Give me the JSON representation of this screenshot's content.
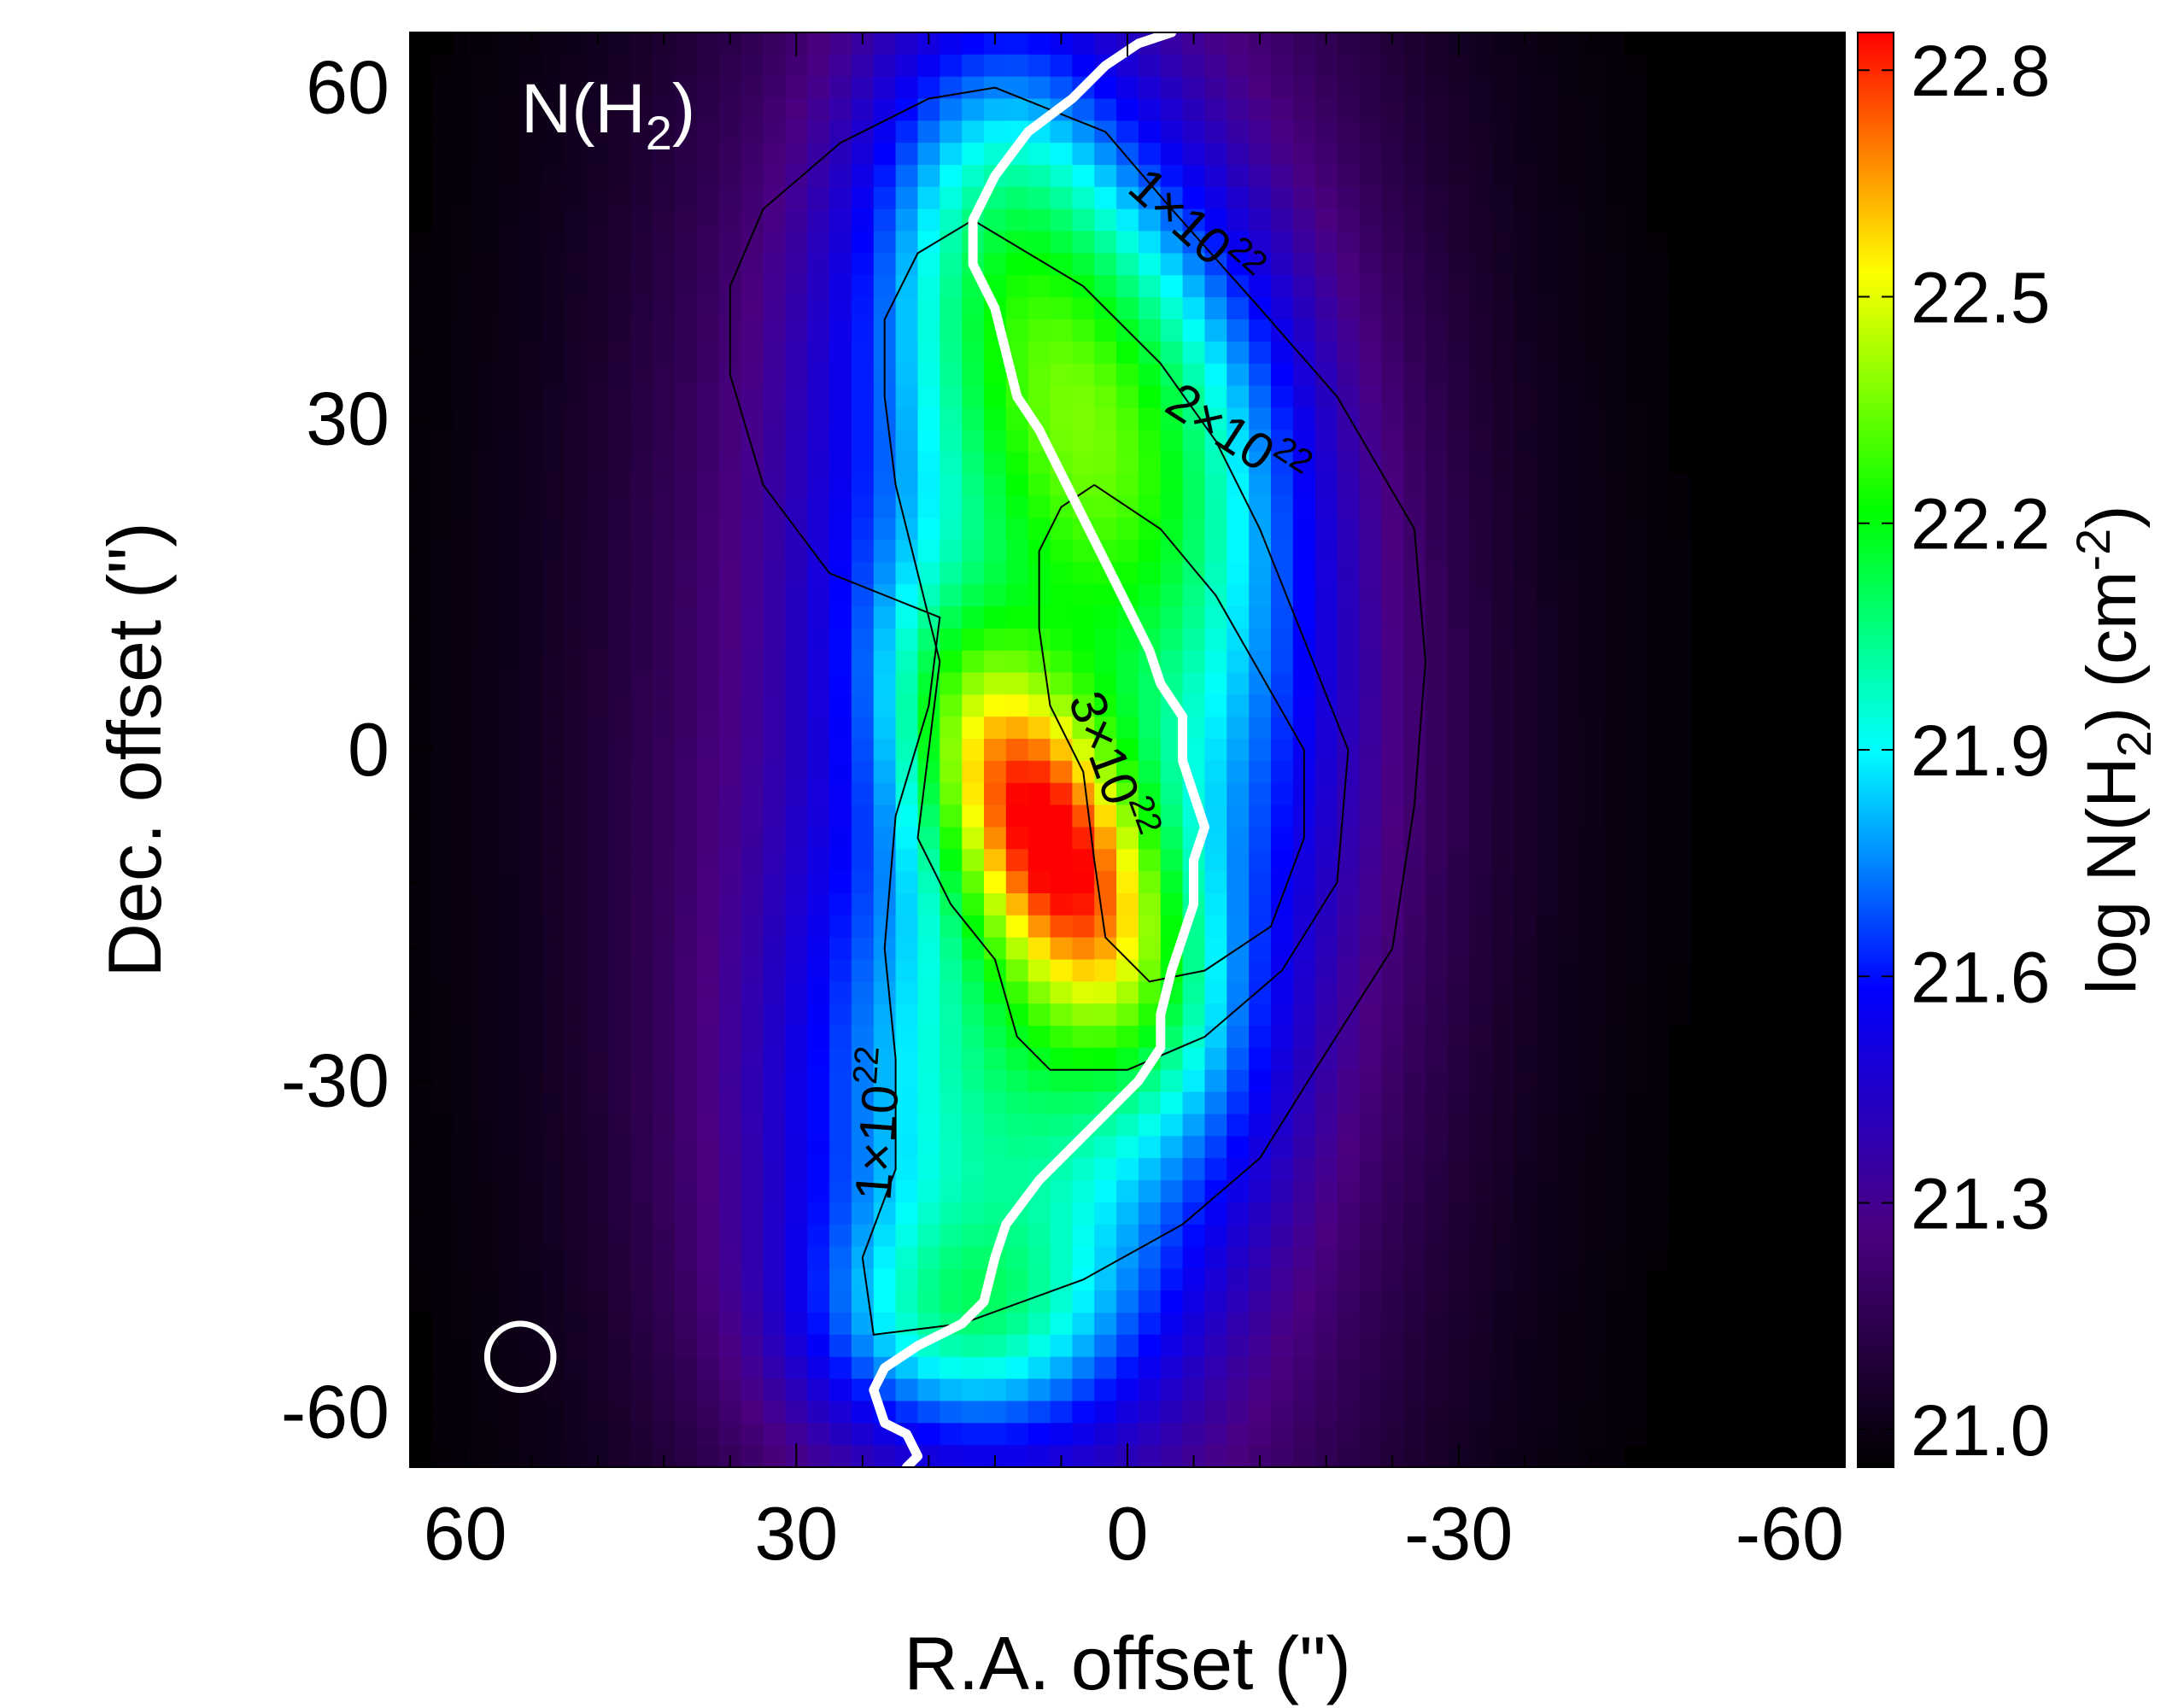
{
  "chart_data": {
    "type": "heatmap",
    "title": "",
    "panel_label": {
      "main": "N(H",
      "sub": "2",
      "close": ")"
    },
    "xlabel": "R.A. offset (\")",
    "ylabel": "Dec. offset (\")",
    "xlim": [
      65,
      -65
    ],
    "ylim": [
      -65,
      65
    ],
    "x_ticks": [
      60,
      30,
      0,
      -30,
      -60
    ],
    "x_tick_labels": [
      "60",
      "30",
      "0",
      "-30",
      "-60"
    ],
    "y_ticks": [
      60,
      30,
      0,
      -30,
      -60
    ],
    "y_tick_labels": [
      "60",
      "30",
      "0",
      "-30",
      "-60"
    ],
    "x_minor_step": 6,
    "y_minor_step": 6,
    "grid": false,
    "colorbar": {
      "label": {
        "main": "log N(H",
        "sub": "2",
        "close": ") (cm",
        "sup": "-2",
        "end": ")"
      },
      "range": [
        20.95,
        22.85
      ],
      "ticks": [
        21.0,
        21.3,
        21.6,
        21.9,
        22.2,
        22.5,
        22.8
      ],
      "tick_labels": [
        "21.0",
        "21.3",
        "21.6",
        "21.9",
        "22.2",
        "22.5",
        "22.8"
      ],
      "colormap": [
        "#000000",
        "#4b0082",
        "#0000ff",
        "#00ffff",
        "#00ff00",
        "#ffff00",
        "#ff0000"
      ]
    },
    "contour_labels": [
      {
        "mantissa": "1×10",
        "exponent": "22",
        "x": -5,
        "y": 46,
        "rotate": 42
      },
      {
        "mantissa": "2×10",
        "exponent": "22",
        "x": -9,
        "y": 27,
        "rotate": 33
      },
      {
        "mantissa": "3×10",
        "exponent": "22",
        "x": 3,
        "y": -2,
        "rotate": 70
      },
      {
        "mantissa": "1×10",
        "exponent": "22",
        "x": 21,
        "y": -34,
        "rotate": -86
      }
    ],
    "contours": [
      {
        "level": "1×10^22",
        "points": [
          [
            12,
            60
          ],
          [
            2,
            56
          ],
          [
            -4,
            49
          ],
          [
            -12,
            40
          ],
          [
            -19,
            32
          ],
          [
            -26,
            20
          ],
          [
            -27,
            8
          ],
          [
            -26,
            -5
          ],
          [
            -24,
            -18
          ],
          [
            -17,
            -29
          ],
          [
            -12,
            -37
          ],
          [
            -5,
            -43
          ],
          [
            4,
            -48
          ],
          [
            15,
            -52
          ],
          [
            23,
            -53
          ],
          [
            24,
            -46
          ],
          [
            21,
            -38
          ],
          [
            21,
            -28
          ],
          [
            22,
            -18
          ],
          [
            21,
            -6
          ],
          [
            18,
            4
          ],
          [
            17,
            12
          ],
          [
            27,
            16
          ],
          [
            33,
            24
          ],
          [
            36,
            34
          ],
          [
            36,
            42
          ],
          [
            33,
            49
          ],
          [
            26,
            55
          ],
          [
            18,
            59
          ],
          [
            12,
            60
          ]
        ]
      },
      {
        "level": "2×10^22",
        "points": [
          [
            14,
            48
          ],
          [
            4,
            42
          ],
          [
            -3,
            35
          ],
          [
            -8,
            28
          ],
          [
            -12,
            20
          ],
          [
            -16,
            10
          ],
          [
            -20,
            0
          ],
          [
            -19,
            -12
          ],
          [
            -14,
            -20
          ],
          [
            -7,
            -26
          ],
          [
            0,
            -29
          ],
          [
            7,
            -29
          ],
          [
            10,
            -26
          ],
          [
            12,
            -19
          ],
          [
            16,
            -14
          ],
          [
            19,
            -8
          ],
          [
            18,
            0
          ],
          [
            17,
            8
          ],
          [
            19,
            16
          ],
          [
            21,
            24
          ],
          [
            22,
            32
          ],
          [
            22,
            39
          ],
          [
            19,
            45
          ],
          [
            14,
            48
          ]
        ]
      },
      {
        "level": "3×10^22",
        "points": [
          [
            3,
            24
          ],
          [
            -3,
            20
          ],
          [
            -8,
            14
          ],
          [
            -12,
            7
          ],
          [
            -16,
            0
          ],
          [
            -16,
            -8
          ],
          [
            -13,
            -16
          ],
          [
            -7,
            -20
          ],
          [
            -2,
            -21
          ],
          [
            2,
            -17
          ],
          [
            3,
            -10
          ],
          [
            4,
            -2
          ],
          [
            7,
            4
          ],
          [
            8,
            11
          ],
          [
            8,
            18
          ],
          [
            6,
            22
          ],
          [
            3,
            24
          ]
        ]
      }
    ],
    "ridge": [
      [
        -4,
        65
      ],
      [
        -1,
        64
      ],
      [
        2,
        62
      ],
      [
        5,
        59
      ],
      [
        9,
        56
      ],
      [
        12,
        52
      ],
      [
        14,
        48
      ],
      [
        14,
        44
      ],
      [
        12,
        40
      ],
      [
        11,
        36
      ],
      [
        10,
        32
      ],
      [
        8,
        29
      ],
      [
        6,
        25
      ],
      [
        4,
        21
      ],
      [
        2,
        17
      ],
      [
        0,
        13
      ],
      [
        -2,
        9
      ],
      [
        -3,
        6
      ],
      [
        -5,
        3
      ],
      [
        -5,
        -1
      ],
      [
        -6,
        -4
      ],
      [
        -7,
        -7
      ],
      [
        -6,
        -10
      ],
      [
        -6,
        -14
      ],
      [
        -5,
        -17
      ],
      [
        -4,
        -20
      ],
      [
        -3,
        -24
      ],
      [
        -3,
        -27
      ],
      [
        -1,
        -30
      ],
      [
        2,
        -33
      ],
      [
        5,
        -36
      ],
      [
        8,
        -39
      ],
      [
        11,
        -43
      ],
      [
        12,
        -46
      ],
      [
        13,
        -50
      ],
      [
        15,
        -52
      ],
      [
        19,
        -54
      ],
      [
        22,
        -56
      ],
      [
        23,
        -58
      ],
      [
        22,
        -61
      ],
      [
        20,
        -62
      ],
      [
        19,
        -64
      ],
      [
        20,
        -65
      ]
    ],
    "beam": {
      "x": 55,
      "y": -55,
      "diameter": 6
    },
    "density_model": {
      "bg": 20.95,
      "components": [
        {
          "amp": 0.95,
          "x0": 8,
          "y0": -7,
          "sa": 14,
          "sb": 6,
          "theta": 62
        },
        {
          "amp": 0.45,
          "x0": 0,
          "y0": 18,
          "sa": 18,
          "sb": 11,
          "theta": 68
        },
        {
          "amp": 0.45,
          "x0": 3,
          "y0": 35,
          "sa": 14,
          "sb": 12,
          "theta": 60
        },
        {
          "amp": 0.5,
          "x0": 10,
          "y0": -30,
          "sa": 20,
          "sb": 14,
          "theta": -70
        },
        {
          "amp": 0.35,
          "x0": 12,
          "y0": 52,
          "sa": 8,
          "sb": 12,
          "theta": 0
        },
        {
          "amp": 0.7,
          "x0": 8,
          "y0": 0,
          "sa": 22,
          "sb": 60,
          "theta": 0
        },
        {
          "amp": 0.4,
          "x0": 15,
          "y0": -52,
          "sa": 10,
          "sb": 7,
          "theta": 0
        }
      ]
    }
  }
}
